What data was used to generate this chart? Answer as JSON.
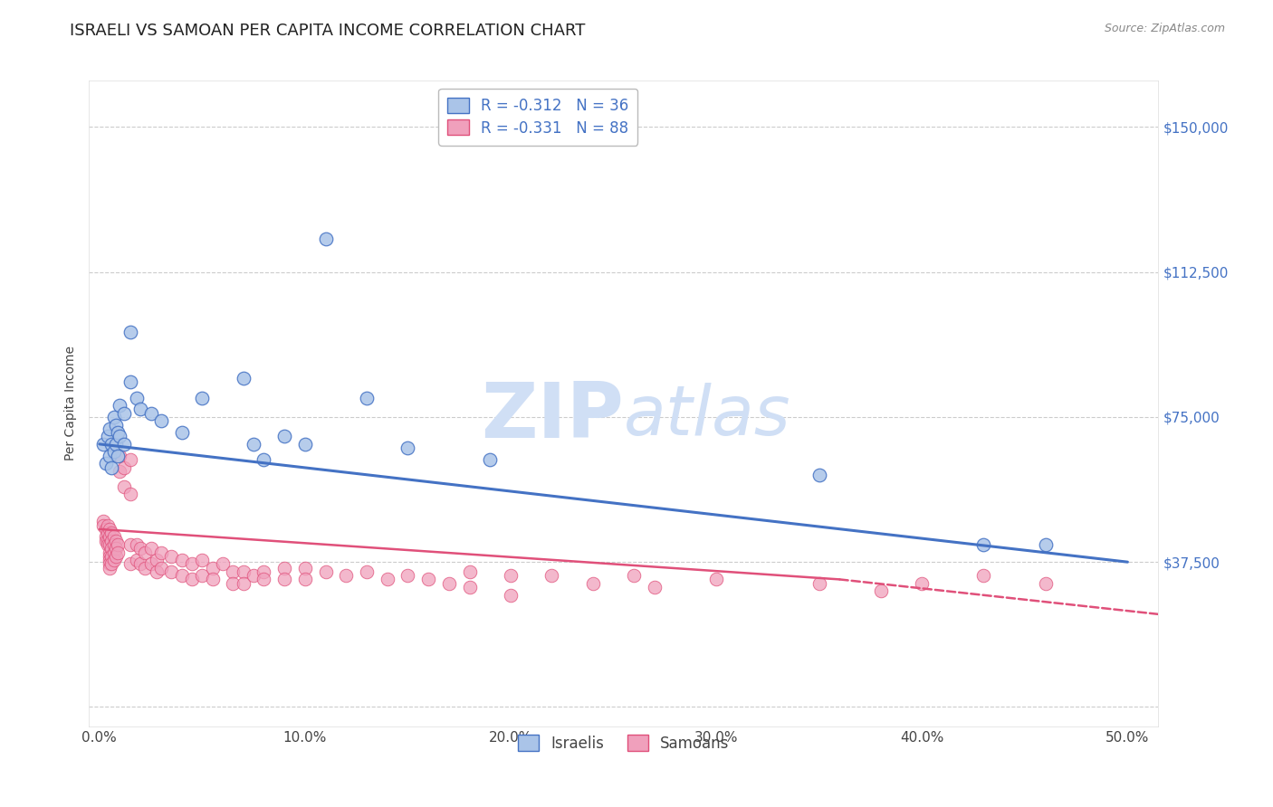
{
  "title": "ISRAELI VS SAMOAN PER CAPITA INCOME CORRELATION CHART",
  "source": "Source: ZipAtlas.com",
  "ylabel": "Per Capita Income",
  "xlabel_ticks": [
    "0.0%",
    "10.0%",
    "20.0%",
    "30.0%",
    "40.0%",
    "50.0%"
  ],
  "xlabel_vals": [
    0.0,
    0.1,
    0.2,
    0.3,
    0.4,
    0.5
  ],
  "ytick_vals": [
    0,
    37500,
    75000,
    112500,
    150000
  ],
  "ytick_labels": [
    "",
    "$37,500",
    "$75,000",
    "$112,500",
    "$150,000"
  ],
  "ylim": [
    -5000,
    162000
  ],
  "xlim": [
    -0.005,
    0.515
  ],
  "israeli_scatter": [
    [
      0.002,
      68000
    ],
    [
      0.003,
      63000
    ],
    [
      0.004,
      70000
    ],
    [
      0.005,
      65000
    ],
    [
      0.005,
      72000
    ],
    [
      0.006,
      68000
    ],
    [
      0.006,
      62000
    ],
    [
      0.007,
      75000
    ],
    [
      0.007,
      66000
    ],
    [
      0.008,
      73000
    ],
    [
      0.008,
      68000
    ],
    [
      0.009,
      71000
    ],
    [
      0.009,
      65000
    ],
    [
      0.01,
      78000
    ],
    [
      0.01,
      70000
    ],
    [
      0.012,
      76000
    ],
    [
      0.012,
      68000
    ],
    [
      0.015,
      97000
    ],
    [
      0.015,
      84000
    ],
    [
      0.018,
      80000
    ],
    [
      0.02,
      77000
    ],
    [
      0.025,
      76000
    ],
    [
      0.03,
      74000
    ],
    [
      0.04,
      71000
    ],
    [
      0.05,
      80000
    ],
    [
      0.07,
      85000
    ],
    [
      0.075,
      68000
    ],
    [
      0.08,
      64000
    ],
    [
      0.09,
      70000
    ],
    [
      0.1,
      68000
    ],
    [
      0.11,
      121000
    ],
    [
      0.13,
      80000
    ],
    [
      0.15,
      67000
    ],
    [
      0.19,
      64000
    ],
    [
      0.35,
      60000
    ],
    [
      0.43,
      42000
    ],
    [
      0.46,
      42000
    ]
  ],
  "samoan_scatter": [
    [
      0.002,
      48000
    ],
    [
      0.002,
      47000
    ],
    [
      0.003,
      46000
    ],
    [
      0.003,
      44000
    ],
    [
      0.003,
      43000
    ],
    [
      0.004,
      47000
    ],
    [
      0.004,
      45000
    ],
    [
      0.004,
      43000
    ],
    [
      0.004,
      42000
    ],
    [
      0.005,
      46000
    ],
    [
      0.005,
      44000
    ],
    [
      0.005,
      42000
    ],
    [
      0.005,
      40000
    ],
    [
      0.005,
      39000
    ],
    [
      0.005,
      38000
    ],
    [
      0.005,
      37000
    ],
    [
      0.005,
      36000
    ],
    [
      0.006,
      45000
    ],
    [
      0.006,
      43000
    ],
    [
      0.006,
      41000
    ],
    [
      0.006,
      39000
    ],
    [
      0.006,
      37000
    ],
    [
      0.007,
      44000
    ],
    [
      0.007,
      42000
    ],
    [
      0.007,
      40000
    ],
    [
      0.007,
      38000
    ],
    [
      0.008,
      43000
    ],
    [
      0.008,
      41000
    ],
    [
      0.008,
      39000
    ],
    [
      0.009,
      42000
    ],
    [
      0.009,
      40000
    ],
    [
      0.01,
      65000
    ],
    [
      0.01,
      61000
    ],
    [
      0.012,
      62000
    ],
    [
      0.012,
      57000
    ],
    [
      0.015,
      64000
    ],
    [
      0.015,
      55000
    ],
    [
      0.015,
      42000
    ],
    [
      0.015,
      37000
    ],
    [
      0.018,
      42000
    ],
    [
      0.018,
      38000
    ],
    [
      0.02,
      41000
    ],
    [
      0.02,
      37000
    ],
    [
      0.022,
      40000
    ],
    [
      0.022,
      36000
    ],
    [
      0.025,
      41000
    ],
    [
      0.025,
      37000
    ],
    [
      0.028,
      38000
    ],
    [
      0.028,
      35000
    ],
    [
      0.03,
      40000
    ],
    [
      0.03,
      36000
    ],
    [
      0.035,
      39000
    ],
    [
      0.035,
      35000
    ],
    [
      0.04,
      38000
    ],
    [
      0.04,
      34000
    ],
    [
      0.045,
      37000
    ],
    [
      0.045,
      33000
    ],
    [
      0.05,
      38000
    ],
    [
      0.05,
      34000
    ],
    [
      0.055,
      36000
    ],
    [
      0.055,
      33000
    ],
    [
      0.06,
      37000
    ],
    [
      0.065,
      35000
    ],
    [
      0.065,
      32000
    ],
    [
      0.07,
      35000
    ],
    [
      0.07,
      32000
    ],
    [
      0.075,
      34000
    ],
    [
      0.08,
      35000
    ],
    [
      0.08,
      33000
    ],
    [
      0.09,
      36000
    ],
    [
      0.09,
      33000
    ],
    [
      0.1,
      36000
    ],
    [
      0.1,
      33000
    ],
    [
      0.11,
      35000
    ],
    [
      0.12,
      34000
    ],
    [
      0.13,
      35000
    ],
    [
      0.14,
      33000
    ],
    [
      0.15,
      34000
    ],
    [
      0.16,
      33000
    ],
    [
      0.17,
      32000
    ],
    [
      0.18,
      35000
    ],
    [
      0.18,
      31000
    ],
    [
      0.2,
      34000
    ],
    [
      0.2,
      29000
    ],
    [
      0.22,
      34000
    ],
    [
      0.24,
      32000
    ],
    [
      0.26,
      34000
    ],
    [
      0.27,
      31000
    ],
    [
      0.3,
      33000
    ],
    [
      0.35,
      32000
    ],
    [
      0.38,
      30000
    ],
    [
      0.4,
      32000
    ],
    [
      0.43,
      34000
    ],
    [
      0.46,
      32000
    ]
  ],
  "israeli_line": {
    "x0": 0.0,
    "y0": 68000,
    "x1": 0.5,
    "y1": 37500
  },
  "samoan_line_solid": {
    "x0": 0.0,
    "y0": 46000,
    "x1": 0.36,
    "y1": 33000
  },
  "samoan_line_dashed": {
    "x0": 0.36,
    "y0": 33000,
    "x1": 0.515,
    "y1": 24000
  },
  "blue_color": "#4472c4",
  "pink_color": "#e0507a",
  "blue_scatter_color": "#aac4e8",
  "pink_scatter_color": "#f0a0bc",
  "watermark_zip": "ZIP",
  "watermark_atlas": "atlas",
  "watermark_color": "#d0dff5",
  "grid_color": "#cccccc",
  "background_color": "#ffffff",
  "title_fontsize": 13,
  "axis_label_fontsize": 10,
  "tick_fontsize": 11,
  "legend_fontsize": 12
}
